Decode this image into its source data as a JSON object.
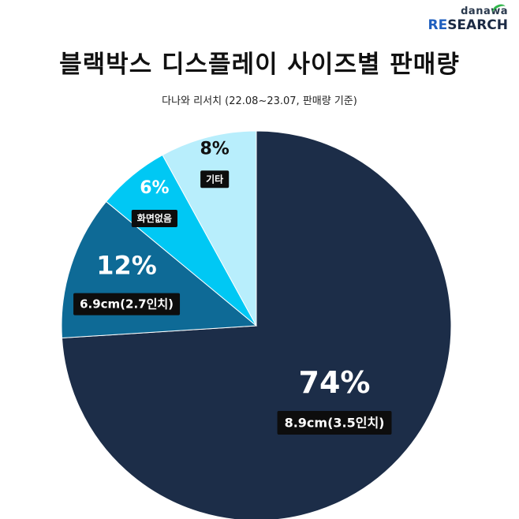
{
  "brand": {
    "top": "danawa",
    "bottom_accent": "RE",
    "bottom_rest": "SEARCH"
  },
  "header": {
    "title": "블랙박스 디스플레이 사이즈별 판매량",
    "subtitle": "다나와 리서치 (22.08~23.07, 판매량 기준)"
  },
  "chart_data": {
    "type": "pie",
    "title": "블랙박스 디스플레이 사이즈별 판매량",
    "subtitle": "다나와 리서치 (22.08~23.07, 판매량 기준)",
    "start_angle_deg": 0,
    "direction": "clockwise",
    "slices": [
      {
        "label": "8.9cm(3.5인치)",
        "value": 74,
        "pct_label": "74%",
        "color": "#1c2d48",
        "text_color": "#ffffff"
      },
      {
        "label": "6.9cm(2.7인치)",
        "value": 12,
        "pct_label": "12%",
        "color": "#0e6a96",
        "text_color": "#ffffff"
      },
      {
        "label": "화면없음",
        "value": 6,
        "pct_label": "6%",
        "color": "#00c8f4",
        "text_color": "#ffffff"
      },
      {
        "label": "기타",
        "value": 8,
        "pct_label": "8%",
        "color": "#b8eefc",
        "text_color": "#111111"
      }
    ]
  }
}
